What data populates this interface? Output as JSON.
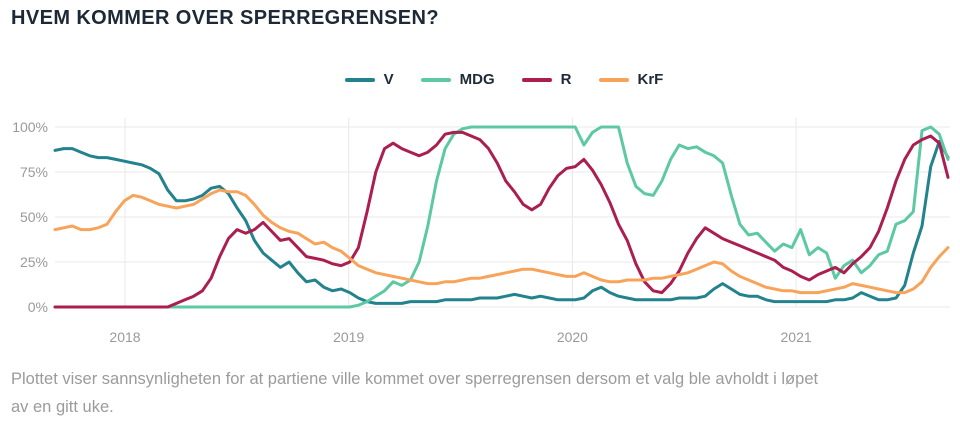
{
  "page": {
    "title": "HVEM KOMMER OVER SPERREGRENSEN?",
    "caption_line1": "Plottet viser sannsynligheten for at partiene ville kommet over sperregrensen dersom et valg ble avholdt i løpet",
    "caption_line2": "av en gitt uke."
  },
  "colors": {
    "background": "#ffffff",
    "title_text": "#1d2936",
    "axis_text": "#9a9a9a",
    "gridline": "#e8e8e8",
    "caption_text": "#9b9b9b"
  },
  "chart_data": {
    "type": "line",
    "title": "HVEM KOMMER OVER SPERREGRENSEN?",
    "xlabel": "",
    "ylabel": "",
    "ylim": [
      0,
      100
    ],
    "grid": true,
    "legend_position": "top-center",
    "x_ticks": [
      "2018",
      "2019",
      "2020",
      "2021"
    ],
    "y_ticks": [
      {
        "value": 0,
        "label": "0%"
      },
      {
        "value": 25,
        "label": "25%"
      },
      {
        "value": 50,
        "label": "50%"
      },
      {
        "value": 75,
        "label": "75%"
      },
      {
        "value": 100,
        "label": "100%"
      }
    ],
    "x_note": "weekly samples (approx. 2-week resolution here), late 2017 to Sept 2021",
    "series": [
      {
        "name": "V",
        "color": "#22828d",
        "values": [
          87,
          88,
          88,
          86,
          84,
          83,
          83,
          82,
          81,
          80,
          79,
          77,
          74,
          65,
          59,
          59,
          60,
          62,
          66,
          67,
          63,
          55,
          48,
          37,
          30,
          26,
          22,
          25,
          19,
          14,
          15,
          11,
          9,
          10,
          8,
          5,
          3,
          2,
          2,
          2,
          2,
          3,
          3,
          3,
          3,
          4,
          4,
          4,
          4,
          5,
          5,
          5,
          6,
          7,
          6,
          5,
          6,
          5,
          4,
          4,
          4,
          5,
          9,
          11,
          8,
          6,
          5,
          4,
          4,
          4,
          4,
          4,
          5,
          5,
          5,
          6,
          10,
          13,
          10,
          7,
          6,
          6,
          4,
          3,
          3,
          3,
          3,
          3,
          3,
          3,
          4,
          4,
          5,
          8,
          6,
          4,
          4,
          5,
          12,
          30,
          45,
          78,
          92,
          83
        ]
      },
      {
        "name": "MDG",
        "color": "#5cc9a2",
        "values": [
          0,
          0,
          0,
          0,
          0,
          0,
          0,
          0,
          0,
          0,
          0,
          0,
          0,
          0,
          0,
          0,
          0,
          0,
          0,
          0,
          0,
          0,
          0,
          0,
          0,
          0,
          0,
          0,
          0,
          0,
          0,
          0,
          0,
          0,
          0,
          1,
          3,
          6,
          9,
          14,
          12,
          15,
          25,
          45,
          70,
          88,
          96,
          99,
          100,
          100,
          100,
          100,
          100,
          100,
          100,
          100,
          100,
          100,
          100,
          100,
          100,
          90,
          97,
          100,
          100,
          100,
          80,
          67,
          63,
          62,
          70,
          82,
          90,
          88,
          89,
          86,
          84,
          80,
          62,
          46,
          40,
          41,
          36,
          31,
          35,
          33,
          43,
          29,
          33,
          30,
          16,
          23,
          26,
          19,
          23,
          29,
          31,
          46,
          48,
          53,
          98,
          100,
          96,
          82
        ]
      },
      {
        "name": "R",
        "color": "#aa1e50",
        "values": [
          0,
          0,
          0,
          0,
          0,
          0,
          0,
          0,
          0,
          0,
          0,
          0,
          0,
          0,
          2,
          4,
          6,
          9,
          16,
          28,
          38,
          43,
          41,
          43,
          47,
          42,
          37,
          38,
          33,
          28,
          27,
          26,
          24,
          23,
          25,
          33,
          53,
          75,
          88,
          91,
          88,
          86,
          84,
          86,
          90,
          96,
          97,
          97,
          95,
          93,
          88,
          80,
          70,
          64,
          57,
          54,
          57,
          66,
          73,
          77,
          78,
          82,
          76,
          68,
          58,
          46,
          37,
          24,
          14,
          9,
          8,
          13,
          20,
          30,
          38,
          44,
          41,
          38,
          36,
          34,
          32,
          30,
          28,
          26,
          22,
          20,
          17,
          15,
          18,
          20,
          22,
          19,
          24,
          28,
          33,
          42,
          55,
          70,
          82,
          90,
          93,
          95,
          91,
          72
        ]
      },
      {
        "name": "KrF",
        "color": "#f8a35a",
        "values": [
          43,
          44,
          45,
          43,
          43,
          44,
          46,
          53,
          59,
          62,
          61,
          59,
          57,
          56,
          55,
          56,
          57,
          60,
          63,
          65,
          64,
          64,
          62,
          57,
          51,
          47,
          44,
          42,
          41,
          38,
          35,
          36,
          33,
          31,
          27,
          23,
          21,
          19,
          18,
          17,
          16,
          15,
          14,
          13,
          13,
          14,
          14,
          15,
          16,
          16,
          17,
          18,
          19,
          20,
          21,
          21,
          20,
          19,
          18,
          17,
          17,
          19,
          17,
          15,
          14,
          14,
          15,
          15,
          15,
          16,
          16,
          17,
          18,
          19,
          21,
          23,
          25,
          24,
          20,
          17,
          15,
          13,
          11,
          10,
          9,
          9,
          8,
          8,
          8,
          9,
          10,
          11,
          13,
          12,
          11,
          10,
          9,
          8,
          8,
          10,
          14,
          22,
          28,
          33
        ]
      }
    ]
  }
}
